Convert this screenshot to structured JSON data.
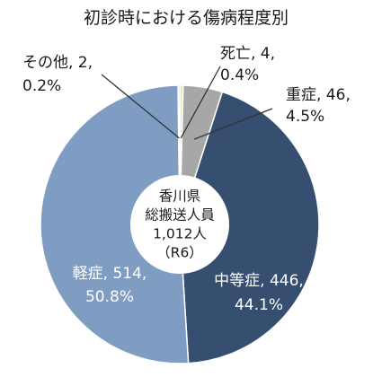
{
  "chart_data": {
    "type": "pie",
    "title": "初診時における傷病程度別",
    "start_angle_deg": 0,
    "direction": "clockwise",
    "slices": [
      {
        "label": "死亡",
        "value": 4,
        "percent": "0.4%",
        "color": "#ece7b8"
      },
      {
        "label": "重症",
        "value": 46,
        "percent": "4.5%",
        "color": "#a7a7a7"
      },
      {
        "label": "中等症",
        "value": 446,
        "percent": "44.1%",
        "color": "#364f71"
      },
      {
        "label": "軽症",
        "value": 514,
        "percent": "50.8%",
        "color": "#7f9cc2"
      },
      {
        "label": "その他",
        "value": 2,
        "percent": "0.2%",
        "color": "#d8c26a"
      }
    ],
    "center_label": {
      "lines": [
        "香川県",
        "総搬送人員",
        "1,012人",
        "（R6）"
      ]
    },
    "separator_color": "#ffffff",
    "center_circle_color": "#ffffff"
  }
}
